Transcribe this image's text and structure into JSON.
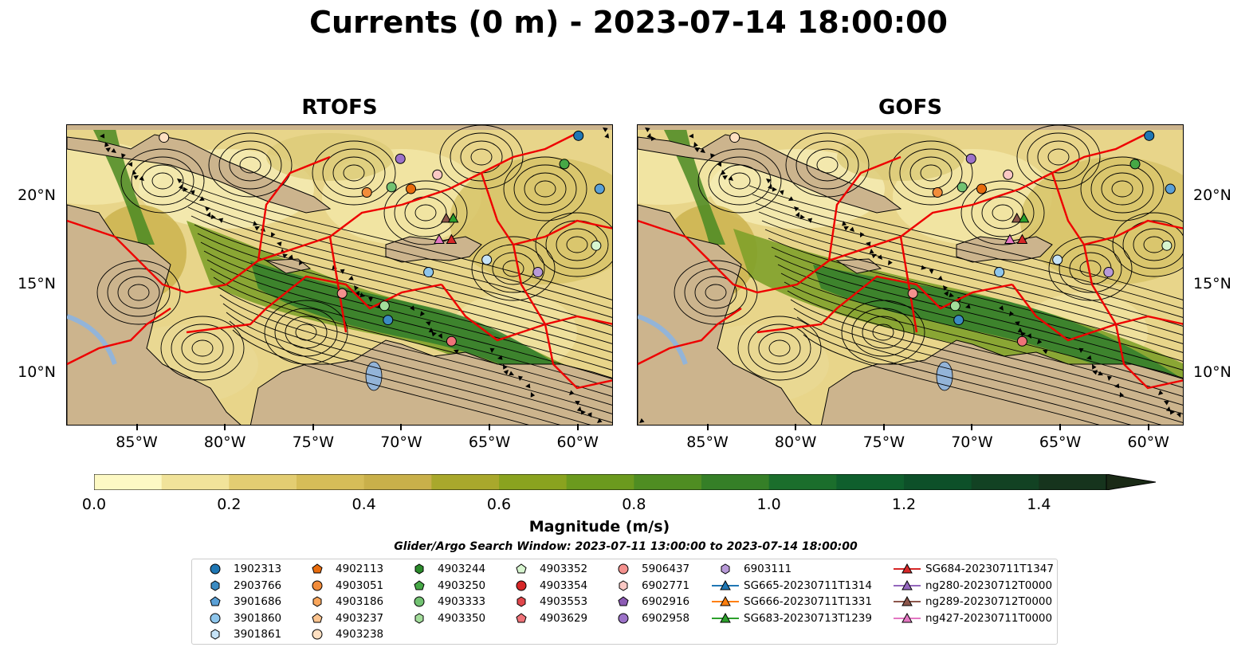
{
  "title": "Currents (0 m) - 2023-07-14 18:00:00",
  "panels": [
    {
      "title": "RTOFS"
    },
    {
      "title": "GOFS"
    }
  ],
  "axes": {
    "lon_ticks": [
      "85°W",
      "80°W",
      "75°W",
      "70°W",
      "65°W",
      "60°W"
    ],
    "lon_values": [
      -85,
      -80,
      -75,
      -70,
      -65,
      -60
    ],
    "lat_ticks": [
      "20°N",
      "15°N",
      "10°N"
    ],
    "lat_values": [
      20,
      15,
      10
    ],
    "lon_range": [
      -89,
      -58
    ],
    "lat_range": [
      7,
      24
    ]
  },
  "colorbar": {
    "label": "Magnitude (m/s)",
    "ticks": [
      "0.0",
      "0.2",
      "0.4",
      "0.6",
      "0.8",
      "1.0",
      "1.2",
      "1.4"
    ],
    "tick_values": [
      0.0,
      0.2,
      0.4,
      0.6,
      0.8,
      1.0,
      1.2,
      1.4
    ],
    "range": [
      0.0,
      1.5
    ],
    "extend": "max",
    "colors": [
      "#fdf9c4",
      "#f1e39a",
      "#e3cd72",
      "#d6bd58",
      "#c9b04a",
      "#a9a82c",
      "#8aa31f",
      "#6b9a1e",
      "#4f8d22",
      "#357f27",
      "#1b6e2c",
      "#0f5f2d",
      "#0d5029",
      "#124223",
      "#16341d",
      "#1a2a16"
    ]
  },
  "search_window": "Glider/Argo Search Window: 2023-07-11 13:00:00 to 2023-07-14 18:00:00",
  "legend": {
    "columns": [
      [
        {
          "label": "1902313",
          "marker": "circle",
          "color": "#1f77b4"
        },
        {
          "label": "2903766",
          "marker": "hexagon",
          "color": "#3b8bc2"
        },
        {
          "label": "3901686",
          "marker": "pentagon",
          "color": "#5aa0d6"
        },
        {
          "label": "3901860",
          "marker": "circle",
          "color": "#8ec6ec"
        },
        {
          "label": "3901861",
          "marker": "hexagon",
          "color": "#c6e3f7"
        }
      ],
      [
        {
          "label": "4902113",
          "marker": "pentagon",
          "color": "#e86c0e"
        },
        {
          "label": "4903051",
          "marker": "circle",
          "color": "#f28c3a"
        },
        {
          "label": "4903186",
          "marker": "hexagon",
          "color": "#f9a65c"
        },
        {
          "label": "4903237",
          "marker": "pentagon",
          "color": "#fcc48f"
        },
        {
          "label": "4903238",
          "marker": "circle",
          "color": "#fee0c2"
        }
      ],
      [
        {
          "label": "4903244",
          "marker": "hexagon",
          "color": "#2a8a2a"
        },
        {
          "label": "4903250",
          "marker": "pentagon",
          "color": "#46a846"
        },
        {
          "label": "4903333",
          "marker": "circle",
          "color": "#72c272"
        },
        {
          "label": "4903350",
          "marker": "hexagon",
          "color": "#a3dd9b"
        }
      ],
      [
        {
          "label": "4903352",
          "marker": "pentagon",
          "color": "#d7f5cf"
        },
        {
          "label": "4903354",
          "marker": "circle",
          "color": "#d62728"
        },
        {
          "label": "4903553",
          "marker": "hexagon",
          "color": "#e0474c"
        },
        {
          "label": "4903629",
          "marker": "pentagon",
          "color": "#ef7379"
        }
      ],
      [
        {
          "label": "5906437",
          "marker": "circle",
          "color": "#f4918e"
        },
        {
          "label": "6902771",
          "marker": "hexagon",
          "color": "#fbc8c4"
        },
        {
          "label": "6902916",
          "marker": "pentagon",
          "color": "#8c5bb4"
        },
        {
          "label": "6902958",
          "marker": "circle",
          "color": "#9c72c8"
        }
      ],
      [
        {
          "label": "6903111",
          "marker": "hexagon",
          "color": "#b89ad8"
        },
        {
          "label": "SG665-20230711T1314",
          "marker": "triangle",
          "color": "#1f77b4"
        },
        {
          "label": "SG666-20230711T1331",
          "marker": "triangle",
          "color": "#ff7f0e"
        },
        {
          "label": "SG683-20230713T1239",
          "marker": "triangle",
          "color": "#2ca02c"
        }
      ],
      [
        {
          "label": "SG684-20230711T1347",
          "marker": "triangle",
          "color": "#d62728"
        },
        {
          "label": "ng280-20230712T0000",
          "marker": "triangle",
          "color": "#9467bd"
        },
        {
          "label": "ng289-20230712T0000",
          "marker": "triangle",
          "color": "#8c564b"
        },
        {
          "label": "ng427-20230711T0000",
          "marker": "triangle",
          "color": "#e377c2"
        }
      ]
    ]
  },
  "colors": {
    "land": "#ccb48d",
    "eez_lines": "#ee0000",
    "lakes": "#93b4d8",
    "streamlines": "#000000"
  }
}
